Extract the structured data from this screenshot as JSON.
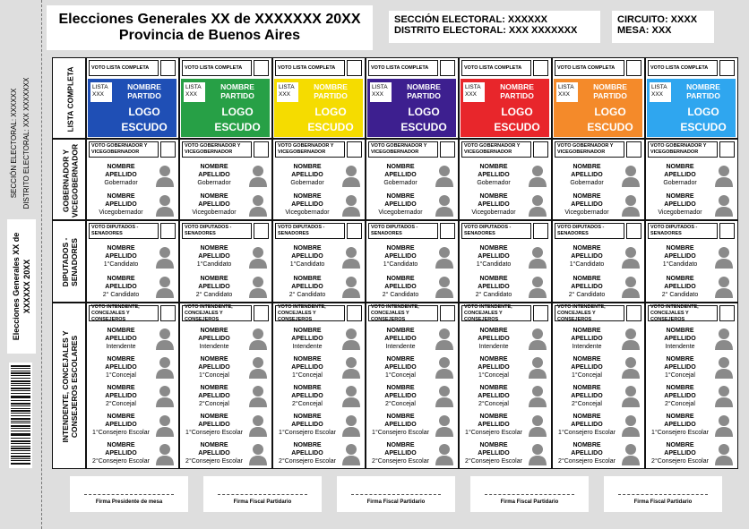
{
  "header": {
    "title": "Elecciones Generales XX de XXXXXXX 20XX",
    "subtitle": "Provincia de Buenos Aires",
    "seccion": "SECCIÓN ELECTORAL: XXXXXX",
    "distrito": "DISTRITO ELECTORAL: XXX XXXXXXX",
    "circuito": "CIRCUITO:  XXXX",
    "mesa": "MESA: XXX"
  },
  "stub": {
    "seccion": "SECCIÓN ELECTORAL: XXXXXX",
    "distrito": "DISTRITO ELECTORAL: XXX XXXXXXX",
    "title": "Elecciones Generales XX de XXXXXX 20XX"
  },
  "lista": {
    "lista": "LISTA",
    "num": "XXX",
    "partido": "NOMBRE PARTIDO",
    "logo": "LOGO",
    "escudo": "ESCUDO"
  },
  "candidate": {
    "nombre": "NOMBRE",
    "apellido": "APELLIDO"
  },
  "sections": [
    {
      "label": "LISTA COMPLETA",
      "vote": "VOTO LISTA COMPLETA"
    },
    {
      "label": "GOBERNADOR Y VICEGOBERNADOR",
      "vote": "VOTO GOBERNADOR Y VICEGOBERNADOR",
      "roles": [
        "Gobernador",
        "Vicegobernador"
      ]
    },
    {
      "label": "DIPUTADOS - SENADORES",
      "vote": "VOTO DIPUTADOS - SENADORES",
      "roles": [
        "1°Candidato",
        "2° Candidato"
      ]
    },
    {
      "label": "INTENDENTE, CONCEJALES Y CONSEJEROS ESCOLARES",
      "vote": "VOTO INTENDENTE, CONCEJALES Y CONSEJEROS",
      "roles": [
        "Intendente",
        "1°Concejal",
        "2°Concejal",
        "1°Consejero Escolar",
        "2°Consejero Escolar"
      ]
    }
  ],
  "columns": [
    {
      "color": "#1f4fb5"
    },
    {
      "color": "#27a046"
    },
    {
      "color": "#f5dc00"
    },
    {
      "color": "#3d1f8f"
    },
    {
      "color": "#e8262b"
    },
    {
      "color": "#f48a2a"
    },
    {
      "color": "#2fa6ef"
    }
  ],
  "signatures": [
    "Firma Presidente de mesa",
    "Firma Fiscal Partidario",
    "Firma Fiscal Partidario",
    "Firma Fiscal Partidario",
    "Firma Fiscal Partidario"
  ]
}
